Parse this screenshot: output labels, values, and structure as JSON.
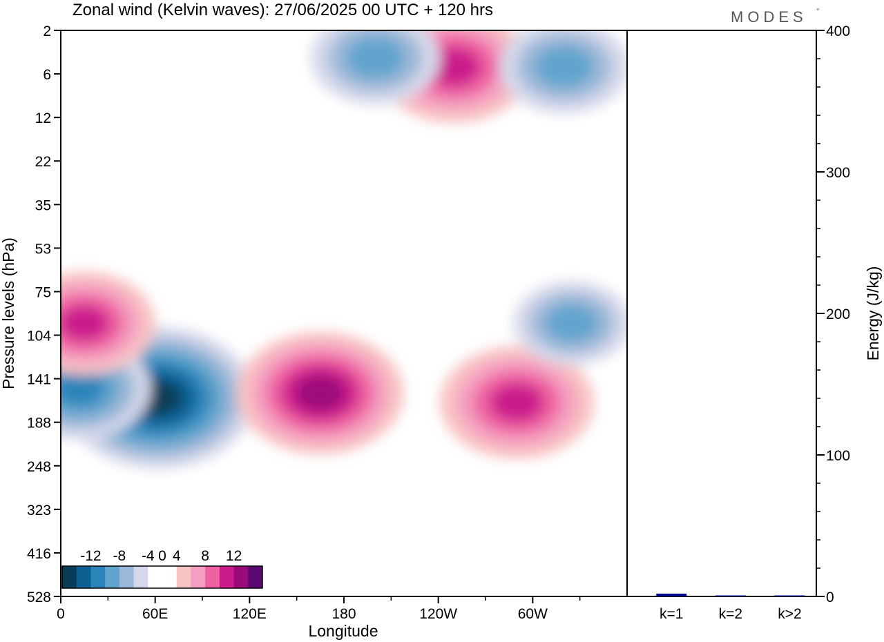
{
  "brand": "MODES",
  "brand_mark": "°",
  "colors": {
    "neg": [
      "#0b3c57",
      "#0e5f92",
      "#2a85bb",
      "#62a4cd",
      "#9cb8d8",
      "#d5d8ea"
    ],
    "neutral": "#ffffff",
    "pos": [
      "#f8c3c3",
      "#f49ec0",
      "#ee62a2",
      "#cc1c8c",
      "#9b0a7a",
      "#5a0a6e"
    ],
    "bar": "#000a8c"
  },
  "chart_data": [
    {
      "type": "heatmap",
      "title": "Zonal wind (Kelvin waves):  27/06/2025  00 UTC  + 120 hrs",
      "xlabel": "Longitude",
      "ylabel": "Pressure levels (hPa)",
      "x_ticks": [
        "0",
        "60E",
        "120E",
        "180",
        "120W",
        "60W"
      ],
      "x_tick_values": [
        0,
        60,
        120,
        180,
        240,
        300
      ],
      "xlim": [
        0,
        360
      ],
      "y_ticks": [
        "2",
        "6",
        "12",
        "22",
        "35",
        "53",
        "75",
        "104",
        "141",
        "188",
        "248",
        "323",
        "416",
        "528"
      ],
      "y_scale": "categorical levels, top to bottom",
      "colorbar": {
        "labels": [
          "-12",
          "-8",
          "-4",
          "0",
          "4",
          "8",
          "12"
        ],
        "levels": [
          -14,
          -12,
          -10,
          -8,
          -6,
          -4,
          -2,
          2,
          4,
          6,
          8,
          10,
          12,
          14
        ]
      },
      "features": [
        {
          "sign": "negative",
          "lon": 62,
          "pressure": 160,
          "peak": -11
        },
        {
          "sign": "negative",
          "lon": 12,
          "pressure": 150,
          "peak": -7
        },
        {
          "sign": "positive",
          "lon": 165,
          "pressure": 155,
          "peak": 9
        },
        {
          "sign": "positive",
          "lon": 290,
          "pressure": 165,
          "peak": 8
        },
        {
          "sign": "positive",
          "lon": 15,
          "pressure": 95,
          "peak": 7
        },
        {
          "sign": "negative",
          "lon": 325,
          "pressure": 95,
          "peak": -5
        },
        {
          "sign": "positive",
          "lon": 250,
          "pressure": 5,
          "peak": 8
        },
        {
          "sign": "negative",
          "lon": 320,
          "pressure": 5,
          "peak": -6
        },
        {
          "sign": "negative",
          "lon": 200,
          "pressure": 4,
          "peak": -6
        }
      ]
    },
    {
      "type": "bar",
      "ylabel": "Energy (J/kg)",
      "categories": [
        "k=1",
        "k=2",
        "k>2"
      ],
      "values": [
        2,
        0.6,
        0.4
      ],
      "ylim": [
        0,
        400
      ],
      "y_ticks": [
        "0",
        "100",
        "200",
        "300",
        "400"
      ]
    }
  ]
}
